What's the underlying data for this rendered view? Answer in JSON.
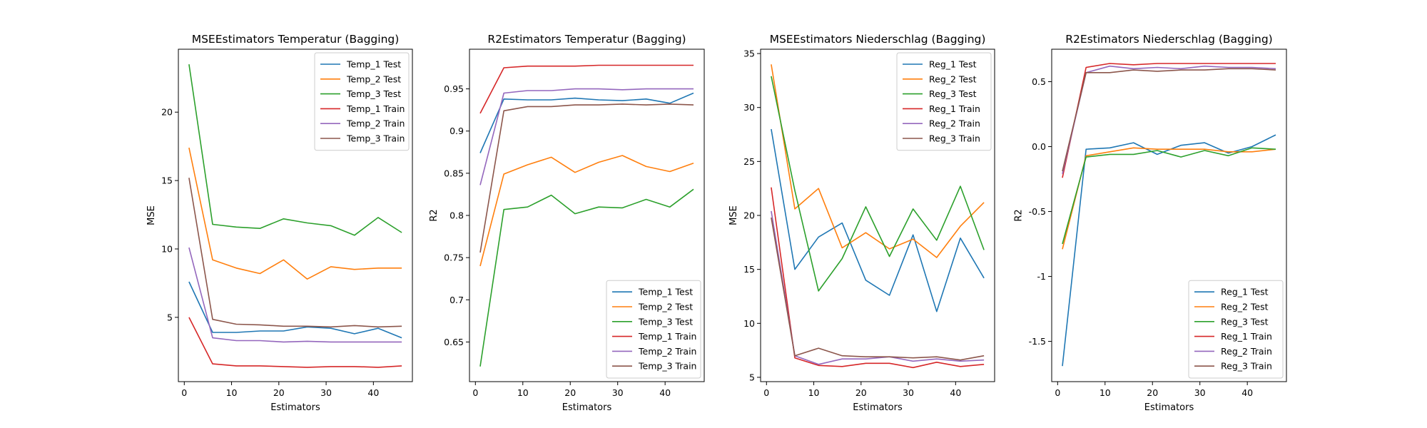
{
  "colors": [
    "#1f77b4",
    "#ff7f0e",
    "#2ca02c",
    "#d62728",
    "#9467bd",
    "#8c564b"
  ],
  "chart_data": [
    {
      "type": "line",
      "title": "MSEEstimators Temperatur (Bagging)",
      "xlabel": "Estimators",
      "ylabel": "MSE",
      "xlim": [
        -1.25,
        48.25
      ],
      "ylim": [
        0.3,
        24.6
      ],
      "xticks": [
        0,
        10,
        20,
        30,
        40
      ],
      "yticks": [
        5,
        10,
        15,
        20
      ],
      "legend_position": "upper right",
      "x": [
        1,
        6,
        11,
        16,
        21,
        26,
        31,
        36,
        41,
        46
      ],
      "series": [
        {
          "name": "Temp_1 Test",
          "values": [
            7.6,
            3.9,
            3.9,
            4.0,
            4.0,
            4.3,
            4.2,
            3.8,
            4.2,
            3.5
          ]
        },
        {
          "name": "Temp_2 Test",
          "values": [
            17.4,
            9.2,
            8.6,
            8.2,
            9.2,
            7.8,
            8.7,
            8.5,
            8.6,
            8.6
          ]
        },
        {
          "name": "Temp_3 Test",
          "values": [
            23.5,
            11.8,
            11.6,
            11.5,
            12.2,
            11.9,
            11.7,
            11.0,
            12.3,
            11.2
          ]
        },
        {
          "name": "Temp_1 Train",
          "values": [
            5.0,
            1.6,
            1.45,
            1.45,
            1.4,
            1.35,
            1.4,
            1.4,
            1.35,
            1.45
          ]
        },
        {
          "name": "Temp_2 Train",
          "values": [
            10.1,
            3.5,
            3.3,
            3.3,
            3.2,
            3.25,
            3.2,
            3.2,
            3.2,
            3.2
          ]
        },
        {
          "name": "Temp_3 Train",
          "values": [
            15.2,
            4.85,
            4.5,
            4.45,
            4.35,
            4.35,
            4.3,
            4.4,
            4.3,
            4.35
          ]
        }
      ]
    },
    {
      "type": "line",
      "title": "R2Estimators Temperatur (Bagging)",
      "xlabel": "Estimators",
      "ylabel": "R2",
      "xlim": [
        -1.25,
        48.25
      ],
      "ylim": [
        0.603,
        0.997
      ],
      "xticks": [
        0,
        10,
        20,
        30,
        40
      ],
      "yticks": [
        0.65,
        0.7,
        0.75,
        0.8,
        0.85,
        0.9,
        0.95
      ],
      "legend_position": "lower right",
      "x": [
        1,
        6,
        11,
        16,
        21,
        26,
        31,
        36,
        41,
        46
      ],
      "series": [
        {
          "name": "Temp_1 Test",
          "values": [
            0.874,
            0.938,
            0.937,
            0.937,
            0.939,
            0.937,
            0.936,
            0.938,
            0.933,
            0.945
          ]
        },
        {
          "name": "Temp_2 Test",
          "values": [
            0.74,
            0.849,
            0.86,
            0.869,
            0.851,
            0.863,
            0.871,
            0.858,
            0.852,
            0.862
          ]
        },
        {
          "name": "Temp_3 Test",
          "values": [
            0.621,
            0.807,
            0.81,
            0.824,
            0.802,
            0.81,
            0.809,
            0.819,
            0.81,
            0.831
          ]
        },
        {
          "name": "Temp_1 Train",
          "values": [
            0.921,
            0.975,
            0.977,
            0.977,
            0.977,
            0.978,
            0.978,
            0.978,
            0.978,
            0.978
          ]
        },
        {
          "name": "Temp_2 Train",
          "values": [
            0.836,
            0.945,
            0.948,
            0.948,
            0.95,
            0.95,
            0.949,
            0.95,
            0.95,
            0.95
          ]
        },
        {
          "name": "Temp_3 Train",
          "values": [
            0.756,
            0.924,
            0.929,
            0.929,
            0.931,
            0.931,
            0.932,
            0.931,
            0.932,
            0.931
          ]
        }
      ]
    },
    {
      "type": "line",
      "title": "MSEEstimators Niederschlag (Bagging)",
      "xlabel": "Estimators",
      "ylabel": "MSE",
      "xlim": [
        -1.25,
        48.25
      ],
      "ylim": [
        4.6,
        35.4
      ],
      "xticks": [
        0,
        10,
        20,
        30,
        40
      ],
      "yticks": [
        5,
        10,
        15,
        20,
        25,
        30,
        35
      ],
      "legend_position": "upper right",
      "x": [
        1,
        6,
        11,
        16,
        21,
        26,
        31,
        36,
        41,
        46
      ],
      "series": [
        {
          "name": "Reg_1 Test",
          "values": [
            28.0,
            15.0,
            18.0,
            19.3,
            14.0,
            12.6,
            18.2,
            11.1,
            17.9,
            14.2
          ]
        },
        {
          "name": "Reg_2 Test",
          "values": [
            34.0,
            20.6,
            22.5,
            17.0,
            18.4,
            16.9,
            17.8,
            16.1,
            19.0,
            21.2
          ]
        },
        {
          "name": "Reg_3 Test",
          "values": [
            32.9,
            22.3,
            13.0,
            16.0,
            20.8,
            16.2,
            20.6,
            17.7,
            22.7,
            16.8
          ]
        },
        {
          "name": "Reg_1 Train",
          "values": [
            22.6,
            6.8,
            6.1,
            6.0,
            6.3,
            6.3,
            5.9,
            6.4,
            6.0,
            6.2
          ]
        },
        {
          "name": "Reg_2 Train",
          "values": [
            20.4,
            7.0,
            6.2,
            6.7,
            6.7,
            6.9,
            6.5,
            6.7,
            6.5,
            6.6
          ]
        },
        {
          "name": "Reg_3 Train",
          "values": [
            19.8,
            7.0,
            7.7,
            7.0,
            6.9,
            6.9,
            6.8,
            6.9,
            6.6,
            7.0
          ]
        }
      ]
    },
    {
      "type": "line",
      "title": "R2Estimators Niederschlag (Bagging)",
      "xlabel": "Estimators",
      "ylabel": "R2",
      "xlim": [
        -1.25,
        48.25
      ],
      "ylim": [
        -1.81,
        0.75
      ],
      "xticks": [
        0,
        10,
        20,
        30,
        40
      ],
      "yticks": [
        -1.5,
        -1.0,
        -0.5,
        0.0,
        0.5
      ],
      "legend_position": "lower right",
      "x": [
        1,
        6,
        11,
        16,
        21,
        26,
        31,
        36,
        41,
        46
      ],
      "series": [
        {
          "name": "Reg_1 Test",
          "values": [
            -1.69,
            -0.02,
            -0.01,
            0.03,
            -0.06,
            0.01,
            0.03,
            -0.05,
            0.0,
            0.09
          ]
        },
        {
          "name": "Reg_2 Test",
          "values": [
            -0.79,
            -0.07,
            -0.04,
            -0.01,
            -0.02,
            -0.02,
            -0.02,
            -0.04,
            -0.04,
            -0.02
          ]
        },
        {
          "name": "Reg_3 Test",
          "values": [
            -0.75,
            -0.08,
            -0.06,
            -0.06,
            -0.03,
            -0.08,
            -0.03,
            -0.07,
            -0.01,
            -0.02
          ]
        },
        {
          "name": "Reg_1 Train",
          "values": [
            -0.24,
            0.61,
            0.64,
            0.63,
            0.64,
            0.64,
            0.64,
            0.64,
            0.64,
            0.64
          ]
        },
        {
          "name": "Reg_2 Train",
          "values": [
            -0.21,
            0.57,
            0.62,
            0.6,
            0.61,
            0.6,
            0.62,
            0.61,
            0.61,
            0.6
          ]
        },
        {
          "name": "Reg_3 Train",
          "values": [
            -0.19,
            0.57,
            0.57,
            0.59,
            0.58,
            0.59,
            0.59,
            0.6,
            0.6,
            0.59
          ]
        }
      ]
    }
  ]
}
